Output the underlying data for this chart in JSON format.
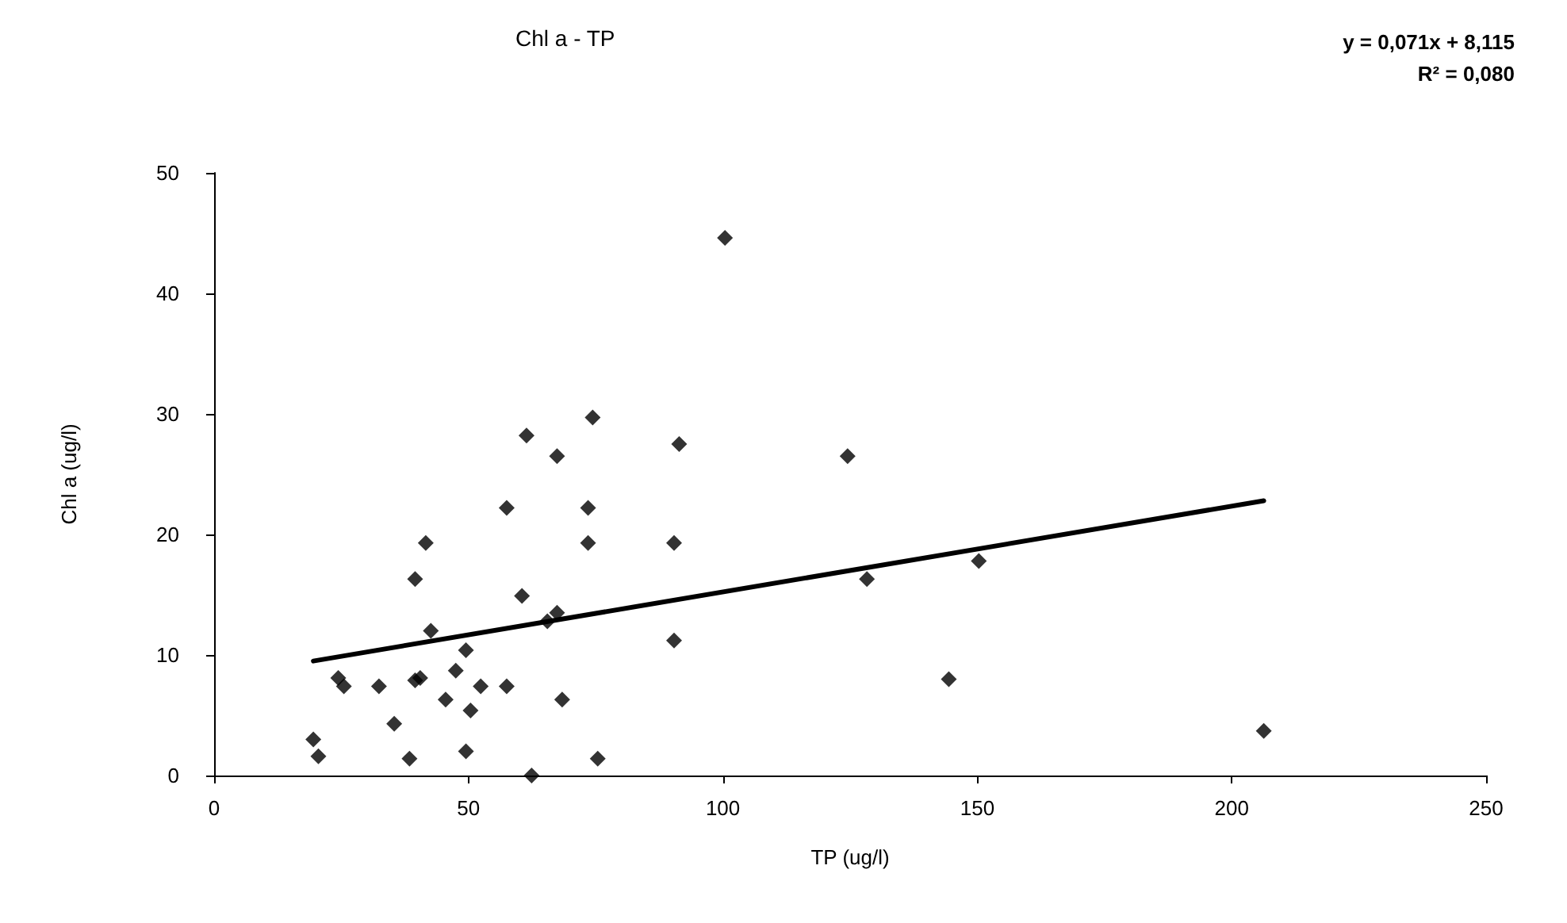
{
  "chart_data": {
    "type": "scatter",
    "title": "Chl a - TP",
    "xlabel": "TP (ug/l)",
    "ylabel": "Chl a (ug/l)",
    "annotations": [
      "y = 0,071x + 8,115",
      "R² = 0,080"
    ],
    "xlim": [
      0,
      250
    ],
    "xticks": [
      0,
      50,
      100,
      150,
      200,
      250
    ],
    "ylim": [
      0,
      50
    ],
    "yticks": [
      0,
      10,
      20,
      30,
      40,
      50
    ],
    "grid": false,
    "marker": "diamond",
    "series": [
      {
        "color": "#000000",
        "x": [
          19.5,
          20.5,
          24.4,
          25.5,
          32.4,
          35.4,
          38.4,
          39.5,
          41.6,
          42.6,
          39.5,
          40.5,
          45.5,
          47.5,
          49.5,
          49.5,
          50.4,
          52.4,
          57.5,
          57.5,
          60.5,
          61.4,
          62.4,
          65.5,
          67.4,
          67.4,
          68.4,
          73.5,
          73.5,
          74.4,
          75.4,
          90.4,
          90.4,
          91.4,
          100.4,
          124.5,
          128.3,
          144.4,
          150.3,
          206.3
        ],
        "values": [
          3.0,
          1.6,
          8.1,
          7.4,
          7.4,
          4.3,
          1.4,
          16.3,
          19.3,
          12.0,
          7.9,
          8.1,
          6.3,
          8.7,
          10.4,
          2.0,
          5.4,
          7.4,
          22.2,
          7.4,
          14.9,
          28.2,
          0.0,
          12.8,
          13.5,
          26.5,
          6.3,
          22.2,
          19.3,
          29.7,
          1.4,
          19.3,
          11.2,
          27.5,
          44.6,
          26.5,
          16.3,
          8.0,
          17.8,
          3.7
        ]
      },
      {
        "type": "line",
        "color": "#000000",
        "marker": "none",
        "line_style": "solid",
        "x": [
          19.5,
          206.3
        ],
        "values": [
          9.5,
          22.8
        ]
      }
    ]
  }
}
